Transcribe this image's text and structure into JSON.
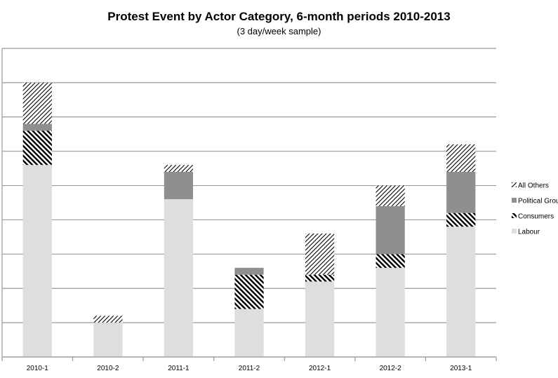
{
  "chart_data": {
    "type": "bar",
    "stacked": true,
    "title": "Protest Event by Actor Category, 6-month periods 2010-2013",
    "subtitle": "(3 day/week sample)",
    "xlabel": "",
    "ylabel": "",
    "categories": [
      "2010-1",
      "2010-2",
      "2011-1",
      "2011-2",
      "2012-1",
      "2012-2",
      "2013-1"
    ],
    "ylim": [
      0,
      9
    ],
    "grid": true,
    "legend_position": "right",
    "series": [
      {
        "name": "Labour",
        "fill": "solid",
        "color": "#dedede",
        "values": [
          5.6,
          1.0,
          4.6,
          1.4,
          2.2,
          2.6,
          3.8
        ]
      },
      {
        "name": "Consumers",
        "fill": "hatch-backslash",
        "color": "#000000",
        "values": [
          1.0,
          0.0,
          0.0,
          1.0,
          0.2,
          0.4,
          0.4
        ]
      },
      {
        "name": "Political Grou",
        "fill": "solid",
        "color": "#8f8f8f",
        "values": [
          0.2,
          0.0,
          0.8,
          0.2,
          0.0,
          1.4,
          1.2
        ]
      },
      {
        "name": "All Others",
        "fill": "hatch-slash",
        "color": "#000000",
        "values": [
          1.2,
          0.2,
          0.2,
          0.0,
          1.2,
          0.6,
          0.8
        ]
      }
    ],
    "legend_order": [
      "All Others",
      "Political Grou",
      "Consumers",
      "Labour"
    ]
  }
}
